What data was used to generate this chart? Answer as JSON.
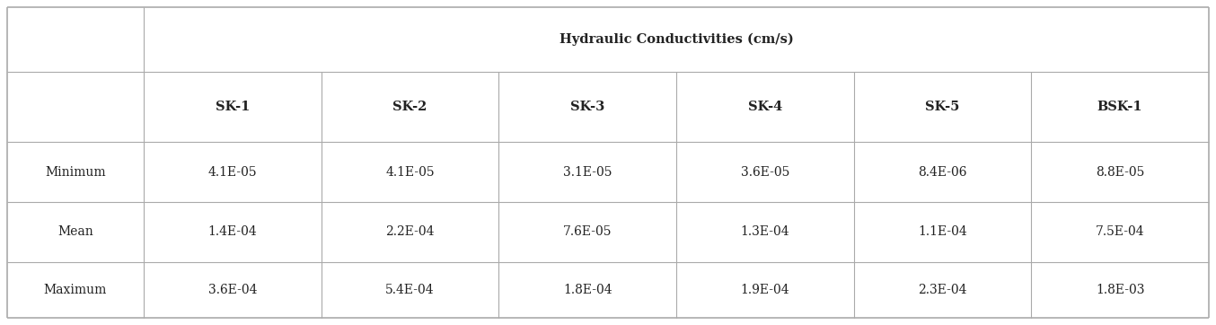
{
  "header_main": "Hydraulic Conductivities (cm/s)",
  "col_headers": [
    "",
    "SK-1",
    "SK-2",
    "SK-3",
    "SK-4",
    "SK-5",
    "BSK-1"
  ],
  "row_headers": [
    "",
    "Minimum",
    "Mean",
    "Maximum"
  ],
  "data": [
    [
      "4.1E-05",
      "4.1E-05",
      "3.1E-05",
      "3.6E-05",
      "8.4E-06",
      "8.8E-05"
    ],
    [
      "1.4E-04",
      "2.2E-04",
      "7.6E-05",
      "1.3E-04",
      "1.1E-04",
      "7.5E-04"
    ],
    [
      "3.6E-04",
      "5.4E-04",
      "1.8E-04",
      "1.9E-04",
      "2.3E-04",
      "1.8E-03"
    ]
  ],
  "bg_color": "#ffffff",
  "line_color": "#aaaaaa",
  "text_color": "#222222",
  "header_fontsize": 10.5,
  "cell_fontsize": 10,
  "fig_width": 13.54,
  "fig_height": 3.62,
  "dpi": 100
}
